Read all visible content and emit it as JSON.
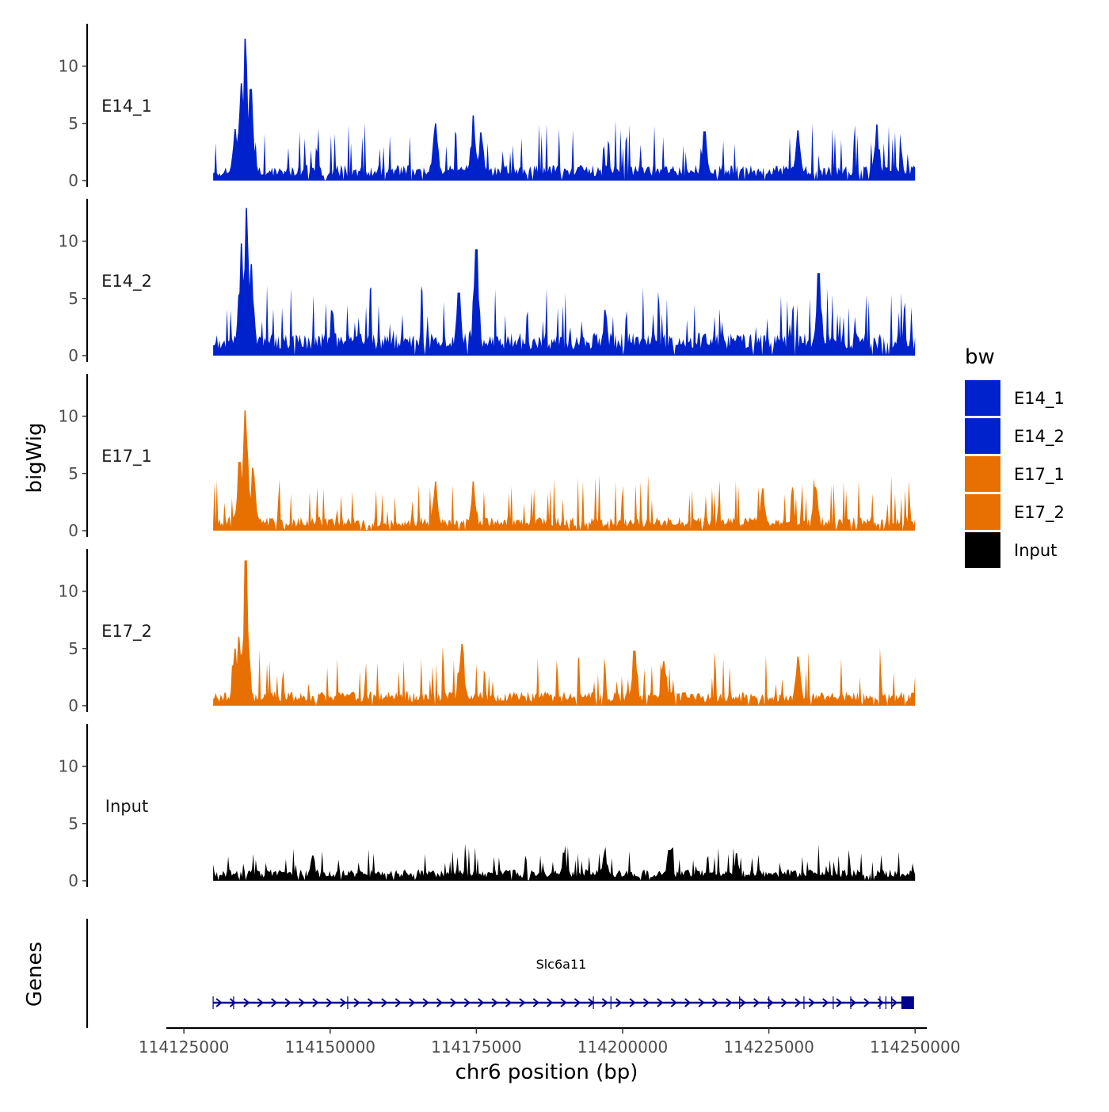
{
  "chart_data": {
    "type": "area",
    "y_axis_title": "bigWig",
    "x_axis_title": "chr6 position (bp)",
    "genes_panel_title": "Genes",
    "xlim": [
      114122000,
      114252000
    ],
    "data_range": [
      114130000,
      114250000
    ],
    "x_ticks": [
      114125000,
      114150000,
      114175000,
      114200000,
      114225000,
      114250000
    ],
    "x_tick_labels": [
      "114125000",
      "114150000",
      "114175000",
      "114200000",
      "114225000",
      "114250000"
    ],
    "ylim": [
      0,
      14
    ],
    "y_ticks": [
      0,
      5,
      10
    ],
    "y_tick_labels": [
      "0",
      "5",
      "10"
    ],
    "legend": {
      "title": "bw",
      "placement": "right",
      "entries": [
        {
          "label": "E14_1",
          "color": "#0022cc"
        },
        {
          "label": "E14_2",
          "color": "#0022cc"
        },
        {
          "label": "E17_1",
          "color": "#e87000"
        },
        {
          "label": "E17_2",
          "color": "#e87000"
        },
        {
          "label": "Input",
          "color": "#000000"
        }
      ]
    },
    "tracks": [
      {
        "name": "E14_1",
        "color": "#0022cc",
        "baseline": 1.1,
        "noise": 1.7,
        "seed": 11,
        "peaks": [
          {
            "x": 114135500,
            "h": 12.4
          },
          {
            "x": 114134800,
            "h": 8.5
          },
          {
            "x": 114136400,
            "h": 8.0
          },
          {
            "x": 114133700,
            "h": 4.5
          },
          {
            "x": 114168000,
            "h": 5.0
          },
          {
            "x": 114174500,
            "h": 5.7
          },
          {
            "x": 114175800,
            "h": 4.2
          },
          {
            "x": 114214000,
            "h": 4.3
          },
          {
            "x": 114230000,
            "h": 4.4
          },
          {
            "x": 114243500,
            "h": 4.9
          }
        ]
      },
      {
        "name": "E14_2",
        "color": "#0022cc",
        "baseline": 1.6,
        "noise": 1.8,
        "seed": 23,
        "peaks": [
          {
            "x": 114135700,
            "h": 12.9
          },
          {
            "x": 114134800,
            "h": 9.8
          },
          {
            "x": 114136500,
            "h": 8.0
          },
          {
            "x": 114175000,
            "h": 9.3
          },
          {
            "x": 114172000,
            "h": 5.5
          },
          {
            "x": 114233500,
            "h": 7.2
          },
          {
            "x": 114197000,
            "h": 4.0
          }
        ]
      },
      {
        "name": "E17_1",
        "color": "#e87000",
        "baseline": 1.0,
        "noise": 1.6,
        "seed": 37,
        "peaks": [
          {
            "x": 114135500,
            "h": 10.5
          },
          {
            "x": 114134500,
            "h": 6.0
          },
          {
            "x": 114136800,
            "h": 5.5
          },
          {
            "x": 114174500,
            "h": 4.3
          },
          {
            "x": 114168000,
            "h": 4.3
          },
          {
            "x": 114233000,
            "h": 3.8
          },
          {
            "x": 114224000,
            "h": 3.7
          }
        ]
      },
      {
        "name": "E17_2",
        "color": "#e87000",
        "baseline": 1.0,
        "noise": 1.7,
        "seed": 41,
        "peaks": [
          {
            "x": 114135600,
            "h": 12.7
          },
          {
            "x": 114134400,
            "h": 6.0
          },
          {
            "x": 114133800,
            "h": 5.0
          },
          {
            "x": 114172500,
            "h": 5.4
          },
          {
            "x": 114202000,
            "h": 4.8
          },
          {
            "x": 114207000,
            "h": 3.9
          },
          {
            "x": 114230000,
            "h": 4.3
          }
        ]
      },
      {
        "name": "Input",
        "color": "#000000",
        "baseline": 0.8,
        "noise": 1.0,
        "seed": 53,
        "peaks": [
          {
            "x": 114219500,
            "h": 2.4
          },
          {
            "x": 114197000,
            "h": 2.5
          },
          {
            "x": 114208000,
            "h": 2.7
          },
          {
            "x": 114190000,
            "h": 2.4
          },
          {
            "x": 114147000,
            "h": 2.2
          }
        ]
      }
    ],
    "gene": {
      "name": "Slc6a11",
      "start": 114130000,
      "end": 114249000,
      "strand": "+",
      "color": "#00008b",
      "exons": [
        114130000,
        114133500,
        114153000,
        114195000,
        114198000,
        114220000,
        114225000,
        114231000,
        114236000,
        114239000,
        114244000,
        114245000,
        114246000
      ]
    }
  }
}
